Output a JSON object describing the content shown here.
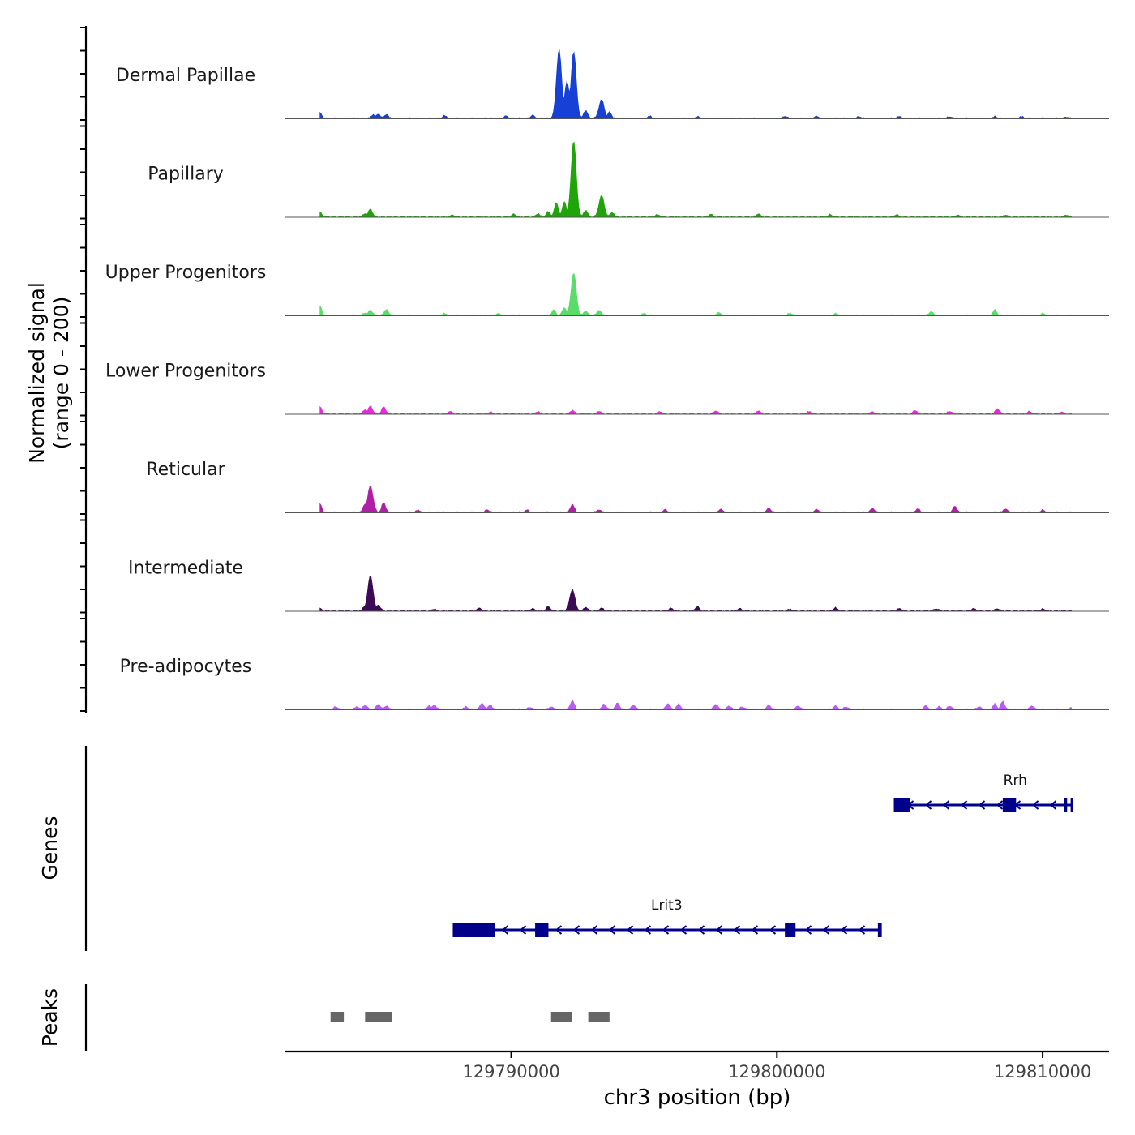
{
  "chart_data": {
    "type": "area",
    "title": "",
    "xlabel": "chr3 position (bp)",
    "ylabel": "Normalized signal",
    "ylabel_range": "(range 0 - 200)",
    "xlim": [
      129781500,
      129812500
    ],
    "ylim": [
      0,
      200
    ],
    "x_ticks": [
      129790000,
      129800000,
      129810000
    ],
    "x_tick_labels": [
      "129790000",
      "129800000",
      "129810000"
    ],
    "tracks": [
      {
        "name": "Dermal Papillae",
        "color": "#1640D6",
        "peaks": [
          [
            129782800,
            12
          ],
          [
            129784800,
            8
          ],
          [
            129785000,
            10
          ],
          [
            129785300,
            9
          ],
          [
            129787500,
            6
          ],
          [
            129789800,
            5
          ],
          [
            129790800,
            7
          ],
          [
            129791800,
            155
          ],
          [
            129792100,
            82
          ],
          [
            129792350,
            150
          ],
          [
            129792800,
            18
          ],
          [
            129793400,
            42
          ],
          [
            129793700,
            14
          ],
          [
            129795200,
            5
          ],
          [
            129797000,
            4
          ],
          [
            129800300,
            5
          ],
          [
            129801500,
            5
          ],
          [
            129803100,
            4
          ],
          [
            129804600,
            4
          ],
          [
            129806500,
            4
          ],
          [
            129808200,
            4
          ],
          [
            129809200,
            4
          ],
          [
            129810900,
            3
          ]
        ]
      },
      {
        "name": "Papillary",
        "color": "#1FA40A",
        "peaks": [
          [
            129782800,
            10
          ],
          [
            129784500,
            8
          ],
          [
            129784700,
            18
          ],
          [
            129787800,
            4
          ],
          [
            129790100,
            6
          ],
          [
            129791000,
            7
          ],
          [
            129791400,
            12
          ],
          [
            129791700,
            32
          ],
          [
            129792000,
            35
          ],
          [
            129792350,
            170
          ],
          [
            129792800,
            15
          ],
          [
            129793400,
            48
          ],
          [
            129793800,
            10
          ],
          [
            129795500,
            5
          ],
          [
            129797500,
            6
          ],
          [
            129799300,
            7
          ],
          [
            129802000,
            5
          ],
          [
            129804500,
            5
          ],
          [
            129806800,
            4
          ],
          [
            129808600,
            4
          ],
          [
            129810900,
            4
          ]
        ]
      },
      {
        "name": "Upper Progenitors",
        "color": "#5ADB6A",
        "peaks": [
          [
            129782800,
            20
          ],
          [
            129784500,
            6
          ],
          [
            129784700,
            12
          ],
          [
            129785300,
            14
          ],
          [
            129787500,
            4
          ],
          [
            129789500,
            4
          ],
          [
            129791600,
            12
          ],
          [
            129792000,
            18
          ],
          [
            129792350,
            95
          ],
          [
            129792800,
            10
          ],
          [
            129793300,
            12
          ],
          [
            129795000,
            4
          ],
          [
            129797800,
            6
          ],
          [
            129800500,
            5
          ],
          [
            129802200,
            4
          ],
          [
            129805800,
            8
          ],
          [
            129808200,
            12
          ],
          [
            129810000,
            4
          ]
        ]
      },
      {
        "name": "Lower Progenitors",
        "color": "#E62BD9",
        "peaks": [
          [
            129782800,
            15
          ],
          [
            129784500,
            10
          ],
          [
            129784700,
            18
          ],
          [
            129785200,
            16
          ],
          [
            129787700,
            5
          ],
          [
            129789200,
            4
          ],
          [
            129791000,
            5
          ],
          [
            129792300,
            8
          ],
          [
            129793300,
            6
          ],
          [
            129795600,
            5
          ],
          [
            129797700,
            7
          ],
          [
            129799300,
            7
          ],
          [
            129801200,
            5
          ],
          [
            129803600,
            5
          ],
          [
            129805200,
            8
          ],
          [
            129806500,
            6
          ],
          [
            129808300,
            12
          ],
          [
            129809500,
            5
          ],
          [
            129810700,
            4
          ]
        ]
      },
      {
        "name": "Reticular",
        "color": "#B01EA8",
        "peaks": [
          [
            129782800,
            18
          ],
          [
            129784500,
            20
          ],
          [
            129784700,
            60
          ],
          [
            129785200,
            22
          ],
          [
            129786500,
            5
          ],
          [
            129789100,
            6
          ],
          [
            129790600,
            5
          ],
          [
            129792300,
            18
          ],
          [
            129793300,
            6
          ],
          [
            129795800,
            6
          ],
          [
            129797900,
            7
          ],
          [
            129799700,
            10
          ],
          [
            129801500,
            7
          ],
          [
            129803600,
            10
          ],
          [
            129805300,
            8
          ],
          [
            129806700,
            14
          ],
          [
            129808600,
            8
          ],
          [
            129810000,
            5
          ]
        ]
      },
      {
        "name": "Intermediate",
        "color": "#3C0A55",
        "peaks": [
          [
            129782800,
            5
          ],
          [
            129784500,
            12
          ],
          [
            129784700,
            80
          ],
          [
            129785000,
            14
          ],
          [
            129787100,
            4
          ],
          [
            129788800,
            6
          ],
          [
            129790800,
            5
          ],
          [
            129791400,
            10
          ],
          [
            129792300,
            48
          ],
          [
            129792800,
            8
          ],
          [
            129793400,
            6
          ],
          [
            129796000,
            6
          ],
          [
            129797000,
            10
          ],
          [
            129798600,
            5
          ],
          [
            129800500,
            4
          ],
          [
            129802200,
            7
          ],
          [
            129804600,
            5
          ],
          [
            129806000,
            5
          ],
          [
            129807400,
            5
          ],
          [
            129808300,
            5
          ],
          [
            129810000,
            4
          ]
        ]
      },
      {
        "name": "Pre-adipocytes",
        "color": "#B85CF5",
        "peaks": [
          [
            129783400,
            6
          ],
          [
            129784200,
            6
          ],
          [
            129784500,
            10
          ],
          [
            129785000,
            12
          ],
          [
            129785300,
            8
          ],
          [
            129786900,
            8
          ],
          [
            129787100,
            10
          ],
          [
            129788300,
            6
          ],
          [
            129788900,
            14
          ],
          [
            129789200,
            10
          ],
          [
            129790700,
            5
          ],
          [
            129791500,
            6
          ],
          [
            129792300,
            20
          ],
          [
            129793500,
            12
          ],
          [
            129794000,
            14
          ],
          [
            129794600,
            10
          ],
          [
            129795900,
            14
          ],
          [
            129796300,
            12
          ],
          [
            129797700,
            12
          ],
          [
            129798200,
            8
          ],
          [
            129798700,
            6
          ],
          [
            129799700,
            10
          ],
          [
            129800800,
            8
          ],
          [
            129802200,
            8
          ],
          [
            129802600,
            6
          ],
          [
            129805600,
            8
          ],
          [
            129806100,
            6
          ],
          [
            129806500,
            8
          ],
          [
            129807600,
            6
          ],
          [
            129808200,
            12
          ],
          [
            129808500,
            18
          ],
          [
            129809600,
            8
          ],
          [
            129811100,
            4
          ]
        ]
      }
    ],
    "genes_label": "Genes",
    "genes": [
      {
        "name": "Rrh",
        "strand": "-",
        "start": 129804400,
        "end": 129811100,
        "exons": [
          [
            129804400,
            129805000
          ],
          [
            129808500,
            129809000
          ],
          [
            129810800,
            129810900
          ]
        ]
      },
      {
        "name": "Lrit3",
        "strand": "-",
        "start": 129787800,
        "end": 129803900,
        "exons": [
          [
            129787800,
            129789400
          ],
          [
            129790900,
            129791400
          ],
          [
            129800300,
            129800700
          ],
          [
            129803800,
            129803900
          ]
        ]
      }
    ],
    "peaks_label": "Peaks",
    "peak_regions": [
      [
        129783200,
        129783700
      ],
      [
        129784500,
        129785500
      ],
      [
        129791500,
        129792300
      ],
      [
        129792900,
        129793700
      ]
    ]
  }
}
